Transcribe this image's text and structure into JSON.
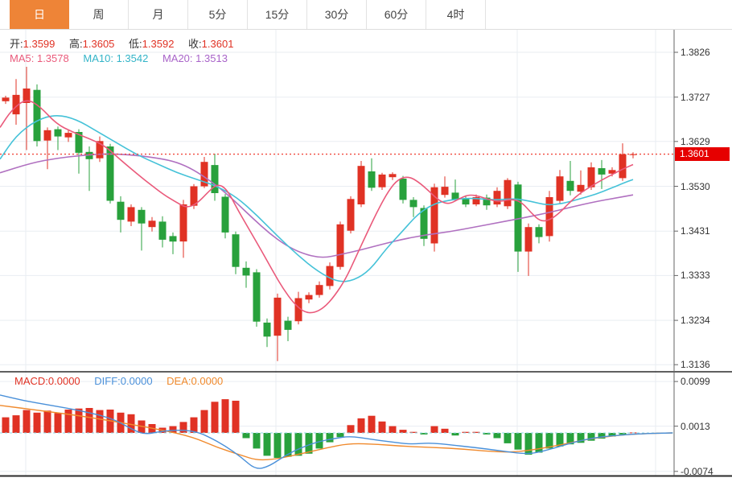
{
  "tabs": {
    "items": [
      {
        "label": "日",
        "active": true
      },
      {
        "label": "周",
        "active": false
      },
      {
        "label": "月",
        "active": false
      },
      {
        "label": "5分",
        "active": false
      },
      {
        "label": "15分",
        "active": false
      },
      {
        "label": "30分",
        "active": false
      },
      {
        "label": "60分",
        "active": false
      },
      {
        "label": "4时",
        "active": false
      }
    ]
  },
  "ohlc_legend": {
    "open_label": "开:",
    "open": "1.3599",
    "high_label": "高:",
    "high": "1.3605",
    "low_label": "低:",
    "low": "1.3592",
    "close_label": "收:",
    "close": "1.3601"
  },
  "ma_legend": {
    "ma5_label": "MA5:",
    "ma5": "1.3578",
    "ma10_label": "MA10:",
    "ma10": "1.3542",
    "ma20_label": "MA20:",
    "ma20": "1.3513"
  },
  "macd_legend": {
    "macd_label": "MACD:",
    "macd": "0.0000",
    "diff_label": "DIFF:",
    "diff": "0.0000",
    "dea_label": "DEA:",
    "dea": "0.0000"
  },
  "price_tag": {
    "value": "1.3601"
  },
  "colors": {
    "up": "#e03224",
    "down": "#28a13c",
    "tab_active": "#ee8437",
    "ma5": "#ea5a7b",
    "ma10": "#45c2d8",
    "ma20": "#b070c0",
    "diff": "#4a90d9",
    "dea": "#f08a2d",
    "price_line": "#f0483c",
    "price_tag_bg": "#e60000",
    "grid": "#e9edf2",
    "axis": "#666",
    "divider": "#2b2b2b",
    "zero_dash": "#8fd8e8"
  },
  "chart_data": [
    {
      "type": "candlestick",
      "title": "Daily K-line with MA5/MA10/MA20",
      "ylim": [
        1.3136,
        1.3826
      ],
      "y_ticks": [
        1.3826,
        1.3727,
        1.3629,
        1.353,
        1.3431,
        1.3333,
        1.3234,
        1.3136
      ],
      "current_price": 1.3601,
      "legend": [
        "MA5",
        "MA10",
        "MA20"
      ],
      "grid": true,
      "ohlc": [
        [
          1.3718,
          1.373,
          1.3712,
          1.3726
        ],
        [
          1.3689,
          1.3767,
          1.3666,
          1.3732
        ],
        [
          1.3714,
          1.3794,
          1.361,
          1.3746
        ],
        [
          1.3743,
          1.3755,
          1.3618,
          1.363
        ],
        [
          1.3631,
          1.366,
          1.3568,
          1.3654
        ],
        [
          1.3656,
          1.3662,
          1.361,
          1.364
        ],
        [
          1.3638,
          1.3655,
          1.3628,
          1.3648
        ],
        [
          1.365,
          1.3656,
          1.3558,
          1.3604
        ],
        [
          1.3606,
          1.3618,
          1.352,
          1.359
        ],
        [
          1.3592,
          1.364,
          1.3584,
          1.363
        ],
        [
          1.3618,
          1.3624,
          1.3492,
          1.3498
        ],
        [
          1.3496,
          1.3508,
          1.3428,
          1.3456
        ],
        [
          1.3452,
          1.349,
          1.3442,
          1.3484
        ],
        [
          1.3478,
          1.3484,
          1.3388,
          1.3448
        ],
        [
          1.344,
          1.3462,
          1.343,
          1.3454
        ],
        [
          1.3452,
          1.3464,
          1.3395,
          1.3412
        ],
        [
          1.342,
          1.3428,
          1.338,
          1.3408
        ],
        [
          1.3408,
          1.35,
          1.3372,
          1.349
        ],
        [
          1.3487,
          1.3535,
          1.348,
          1.353
        ],
        [
          1.353,
          1.3595,
          1.3526,
          1.3584
        ],
        [
          1.3577,
          1.3602,
          1.3498,
          1.3515
        ],
        [
          1.3507,
          1.3513,
          1.3415,
          1.3428
        ],
        [
          1.3424,
          1.343,
          1.3336,
          1.3352
        ],
        [
          1.335,
          1.3364,
          1.3306,
          1.3333
        ],
        [
          1.334,
          1.3347,
          1.322,
          1.3231
        ],
        [
          1.3229,
          1.3238,
          1.3175,
          1.3198
        ],
        [
          1.32,
          1.3293,
          1.3144,
          1.3284
        ],
        [
          1.3233,
          1.3242,
          1.3188,
          1.3213
        ],
        [
          1.3232,
          1.3297,
          1.3225,
          1.3283
        ],
        [
          1.328,
          1.3296,
          1.3272,
          1.329
        ],
        [
          1.329,
          1.332,
          1.3284,
          1.3312
        ],
        [
          1.331,
          1.3362,
          1.3302,
          1.3354
        ],
        [
          1.3352,
          1.3452,
          1.3346,
          1.3446
        ],
        [
          1.3432,
          1.3508,
          1.3426,
          1.3502
        ],
        [
          1.349,
          1.3586,
          1.3484,
          1.3575
        ],
        [
          1.3563,
          1.3592,
          1.352,
          1.3527
        ],
        [
          1.3528,
          1.356,
          1.3522,
          1.3556
        ],
        [
          1.355,
          1.3561,
          1.3544,
          1.3557
        ],
        [
          1.3547,
          1.3553,
          1.3492,
          1.35
        ],
        [
          1.35,
          1.3506,
          1.3462,
          1.3484
        ],
        [
          1.3482,
          1.3488,
          1.3398,
          1.3414
        ],
        [
          1.3404,
          1.3536,
          1.3386,
          1.3528
        ],
        [
          1.3511,
          1.3552,
          1.3505,
          1.3529
        ],
        [
          1.3516,
          1.3545,
          1.3497,
          1.35
        ],
        [
          1.3502,
          1.351,
          1.3484,
          1.349
        ],
        [
          1.349,
          1.3512,
          1.3486,
          1.3506
        ],
        [
          1.3505,
          1.3512,
          1.3478,
          1.3488
        ],
        [
          1.349,
          1.3528,
          1.3484,
          1.352
        ],
        [
          1.3486,
          1.3548,
          1.348,
          1.3544
        ],
        [
          1.3534,
          1.354,
          1.3341,
          1.3386
        ],
        [
          1.3386,
          1.3448,
          1.3332,
          1.344
        ],
        [
          1.344,
          1.3446,
          1.3404,
          1.3418
        ],
        [
          1.342,
          1.352,
          1.3408,
          1.3506
        ],
        [
          1.3498,
          1.3566,
          1.3492,
          1.3552
        ],
        [
          1.3542,
          1.3586,
          1.351,
          1.352
        ],
        [
          1.3518,
          1.3565,
          1.3512,
          1.3533
        ],
        [
          1.3528,
          1.3583,
          1.3522,
          1.3572
        ],
        [
          1.357,
          1.3588,
          1.3524,
          1.3556
        ],
        [
          1.3558,
          1.3572,
          1.3552,
          1.3566
        ],
        [
          1.3548,
          1.3625,
          1.3542,
          1.3601
        ],
        [
          1.3599,
          1.3605,
          1.3592,
          1.3601
        ]
      ],
      "ma5_points": [
        [
          0,
          1.366
        ],
        [
          15,
          1.37
        ],
        [
          33,
          1.3724
        ],
        [
          50,
          1.3706
        ],
        [
          70,
          1.3668
        ],
        [
          90,
          1.365
        ],
        [
          110,
          1.3636
        ],
        [
          130,
          1.362
        ],
        [
          150,
          1.3588
        ],
        [
          170,
          1.3558
        ],
        [
          190,
          1.353
        ],
        [
          205,
          1.351
        ],
        [
          218,
          1.3496
        ],
        [
          232,
          1.3482
        ],
        [
          245,
          1.3492
        ],
        [
          258,
          1.3516
        ],
        [
          270,
          1.3536
        ],
        [
          282,
          1.3524
        ],
        [
          295,
          1.348
        ],
        [
          310,
          1.3434
        ],
        [
          325,
          1.3388
        ],
        [
          340,
          1.334
        ],
        [
          352,
          1.3304
        ],
        [
          365,
          1.3272
        ],
        [
          378,
          1.3252
        ],
        [
          390,
          1.325
        ],
        [
          403,
          1.3262
        ],
        [
          416,
          1.3288
        ],
        [
          430,
          1.3326
        ],
        [
          443,
          1.3376
        ],
        [
          456,
          1.3426
        ],
        [
          470,
          1.3478
        ],
        [
          483,
          1.352
        ],
        [
          495,
          1.3546
        ],
        [
          508,
          1.3552
        ],
        [
          520,
          1.354
        ],
        [
          533,
          1.352
        ],
        [
          546,
          1.3498
        ],
        [
          558,
          1.349
        ],
        [
          570,
          1.3502
        ],
        [
          583,
          1.3512
        ],
        [
          596,
          1.3508
        ],
        [
          609,
          1.35
        ],
        [
          622,
          1.3496
        ],
        [
          635,
          1.3502
        ],
        [
          648,
          1.3496
        ],
        [
          660,
          1.3472
        ],
        [
          672,
          1.3452
        ],
        [
          684,
          1.3456
        ],
        [
          696,
          1.3472
        ],
        [
          709,
          1.3496
        ],
        [
          722,
          1.3516
        ],
        [
          735,
          1.353
        ],
        [
          748,
          1.3544
        ],
        [
          761,
          1.3556
        ],
        [
          774,
          1.3568
        ],
        [
          787,
          1.3578
        ]
      ],
      "ma10_points": [
        [
          0,
          1.359
        ],
        [
          20,
          1.3642
        ],
        [
          45,
          1.3676
        ],
        [
          70,
          1.3689
        ],
        [
          95,
          1.3678
        ],
        [
          120,
          1.3652
        ],
        [
          145,
          1.3626
        ],
        [
          170,
          1.36
        ],
        [
          195,
          1.358
        ],
        [
          220,
          1.356
        ],
        [
          245,
          1.3545
        ],
        [
          270,
          1.353
        ],
        [
          295,
          1.3505
        ],
        [
          320,
          1.3465
        ],
        [
          345,
          1.342
        ],
        [
          370,
          1.3378
        ],
        [
          395,
          1.3342
        ],
        [
          420,
          1.3318
        ],
        [
          440,
          1.3322
        ],
        [
          460,
          1.3345
        ],
        [
          480,
          1.3392
        ],
        [
          500,
          1.343
        ],
        [
          520,
          1.347
        ],
        [
          540,
          1.3492
        ],
        [
          560,
          1.35
        ],
        [
          580,
          1.3504
        ],
        [
          600,
          1.3502
        ],
        [
          620,
          1.35
        ],
        [
          640,
          1.3503
        ],
        [
          660,
          1.3497
        ],
        [
          680,
          1.3488
        ],
        [
          700,
          1.3492
        ],
        [
          720,
          1.3502
        ],
        [
          740,
          1.3512
        ],
        [
          760,
          1.3526
        ],
        [
          775,
          1.3537
        ],
        [
          787,
          1.3545
        ]
      ],
      "ma20_points": [
        [
          0,
          1.356
        ],
        [
          40,
          1.3582
        ],
        [
          70,
          1.3592
        ],
        [
          100,
          1.3598
        ],
        [
          130,
          1.3602
        ],
        [
          160,
          1.36
        ],
        [
          190,
          1.3594
        ],
        [
          215,
          1.3586
        ],
        [
          235,
          1.3572
        ],
        [
          255,
          1.355
        ],
        [
          275,
          1.3524
        ],
        [
          295,
          1.3492
        ],
        [
          315,
          1.3458
        ],
        [
          335,
          1.3426
        ],
        [
          355,
          1.34
        ],
        [
          375,
          1.3382
        ],
        [
          400,
          1.3371
        ],
        [
          425,
          1.338
        ],
        [
          450,
          1.339
        ],
        [
          475,
          1.3402
        ],
        [
          500,
          1.3413
        ],
        [
          530,
          1.3423
        ],
        [
          560,
          1.343
        ],
        [
          590,
          1.344
        ],
        [
          620,
          1.345
        ],
        [
          650,
          1.346
        ],
        [
          680,
          1.3471
        ],
        [
          710,
          1.3484
        ],
        [
          740,
          1.3496
        ],
        [
          765,
          1.3504
        ],
        [
          787,
          1.3511
        ]
      ]
    },
    {
      "type": "bar",
      "title": "MACD",
      "ylim": [
        -0.0074,
        0.0099
      ],
      "y_ticks": [
        0.0099,
        0.0013,
        -0.0074
      ],
      "histogram": [
        0.003,
        0.0034,
        0.0044,
        0.0039,
        0.0043,
        0.0038,
        0.0045,
        0.0047,
        0.0048,
        0.0044,
        0.0045,
        0.0039,
        0.0036,
        0.0024,
        0.0017,
        0.001,
        0.0013,
        0.0021,
        0.003,
        0.0044,
        0.006,
        0.0065,
        0.0062,
        -0.001,
        -0.003,
        -0.0044,
        -0.0048,
        -0.0046,
        -0.0044,
        -0.004,
        -0.003,
        -0.0018,
        -0.0008,
        0.0015,
        0.0028,
        0.0033,
        0.0022,
        0.0013,
        0.0006,
        0.0002,
        -0.0003,
        0.0013,
        0.0008,
        -0.0005,
        0.0002,
        0.0002,
        -0.0003,
        -0.001,
        -0.002,
        -0.0032,
        -0.0042,
        -0.0038,
        -0.003,
        -0.0026,
        -0.0022,
        -0.0019,
        -0.0015,
        -0.0011,
        -0.0007,
        -0.0003,
        0.0001
      ],
      "diff_points": [
        [
          0,
          0.0073
        ],
        [
          30,
          0.0062
        ],
        [
          60,
          0.0054
        ],
        [
          100,
          0.0043
        ],
        [
          140,
          0.0028
        ],
        [
          165,
          0.0006
        ],
        [
          180,
          -0.0003
        ],
        [
          200,
          0.0003
        ],
        [
          225,
          0.0006
        ],
        [
          245,
          0.0002
        ],
        [
          260,
          -0.0008
        ],
        [
          280,
          -0.0025
        ],
        [
          300,
          -0.0047
        ],
        [
          318,
          -0.0071
        ],
        [
          335,
          -0.0064
        ],
        [
          355,
          -0.0043
        ],
        [
          375,
          -0.0028
        ],
        [
          395,
          -0.0017
        ],
        [
          415,
          -0.0011
        ],
        [
          435,
          -0.0006
        ],
        [
          460,
          -0.0012
        ],
        [
          485,
          -0.0017
        ],
        [
          510,
          -0.0022
        ],
        [
          535,
          -0.0019
        ],
        [
          560,
          -0.0023
        ],
        [
          590,
          -0.0028
        ],
        [
          620,
          -0.0034
        ],
        [
          650,
          -0.004
        ],
        [
          665,
          -0.0039
        ],
        [
          690,
          -0.0029
        ],
        [
          715,
          -0.0017
        ],
        [
          740,
          -0.0009
        ],
        [
          765,
          -0.0005
        ],
        [
          790,
          -0.0002
        ],
        [
          836,
          0.0
        ]
      ],
      "dea_points": [
        [
          0,
          0.0053
        ],
        [
          50,
          0.0043
        ],
        [
          100,
          0.0033
        ],
        [
          150,
          0.002
        ],
        [
          200,
          0.0006
        ],
        [
          240,
          -0.0008
        ],
        [
          270,
          -0.0028
        ],
        [
          300,
          -0.0043
        ],
        [
          320,
          -0.0053
        ],
        [
          345,
          -0.005
        ],
        [
          375,
          -0.004
        ],
        [
          405,
          -0.0029
        ],
        [
          435,
          -0.002
        ],
        [
          470,
          -0.0022
        ],
        [
          505,
          -0.0026
        ],
        [
          540,
          -0.0028
        ],
        [
          575,
          -0.0031
        ],
        [
          610,
          -0.0036
        ],
        [
          640,
          -0.0037
        ],
        [
          670,
          -0.0031
        ],
        [
          700,
          -0.0022
        ],
        [
          730,
          -0.0012
        ],
        [
          760,
          -0.0006
        ],
        [
          790,
          -0.0002
        ],
        [
          836,
          0.0
        ]
      ]
    }
  ]
}
